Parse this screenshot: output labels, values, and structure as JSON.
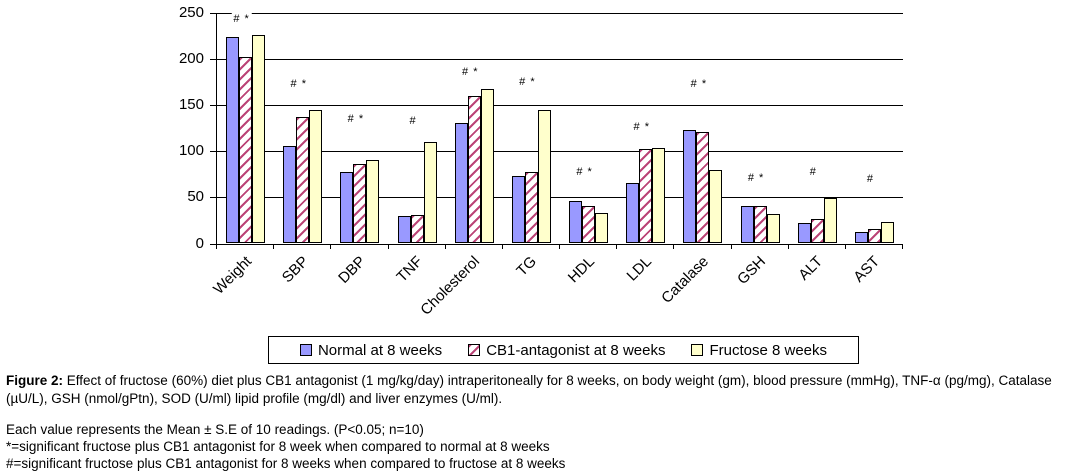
{
  "chart_data": {
    "type": "bar",
    "title": "",
    "categories": [
      "Weight",
      "SBP",
      "DBP",
      "TNF",
      "Cholesterol",
      "TG",
      "HDL",
      "LDL",
      "Catalase",
      "GSH",
      "ALT",
      "AST"
    ],
    "series": [
      {
        "name": "Normal  at 8 weeks",
        "color": "#9999FF",
        "pattern": "solid",
        "values": [
          224,
          106,
          77,
          30,
          130,
          73,
          46,
          66,
          123,
          41,
          22,
          12
        ]
      },
      {
        "name": "CB1-antagonist at 8 weeks",
        "color": "#BB4477",
        "pattern": "diagonal-hatch",
        "values": [
          202,
          137,
          86,
          31,
          160,
          77,
          41,
          102,
          121,
          41,
          27,
          16
        ]
      },
      {
        "name": "Fructose 8 weeks",
        "color": "#FFFFCC",
        "pattern": "solid",
        "values": [
          226,
          144,
          90,
          110,
          167,
          145,
          33,
          103,
          80,
          32,
          49,
          23
        ]
      }
    ],
    "ylim": [
      0,
      250
    ],
    "yticks": [
      0,
      50,
      100,
      150,
      200,
      250
    ],
    "grid": "horizontal",
    "legend_position": "bottom",
    "annotations": [
      {
        "category": "Weight",
        "text": "# *",
        "y": 242
      },
      {
        "category": "SBP",
        "text": "# *",
        "y": 172
      },
      {
        "category": "DBP",
        "text": "# *",
        "y": 134
      },
      {
        "category": "TNF",
        "text": "#",
        "y": 132
      },
      {
        "category": "Cholesterol",
        "text": "# *",
        "y": 185
      },
      {
        "category": "TG",
        "text": "# *",
        "y": 174
      },
      {
        "category": "HDL",
        "text": "# *",
        "y": 76
      },
      {
        "category": "LDL",
        "text": "# *",
        "y": 125
      },
      {
        "category": "Catalase",
        "text": "# *",
        "y": 172
      },
      {
        "category": "GSH",
        "text": "# *",
        "y": 70
      },
      {
        "category": "ALT",
        "text": "#",
        "y": 76
      },
      {
        "category": "AST",
        "text": "#",
        "y": 69
      }
    ]
  },
  "caption": {
    "label": "Figure 2:",
    "text": " Effect of fructose (60%) diet plus CB1 antagonist (1 mg/kg/day) intraperitoneally for 8 weeks, on body weight (gm), blood pressure (mmHg), TNF-α (pg/mg), Catalase (µU/L), GSH (nmol/gPtn), SOD (U/ml) lipid profile (mg/dl) and liver enzymes (U/ml)."
  },
  "notes": [
    "Each value represents the Mean ± S.E of 10 readings. (P<0.05; n=10)",
    "*=significant fructose plus CB1 antagonist for 8 week when compared to normal at 8 weeks",
    "#=significant fructose plus CB1 antagonist for 8 weeks when compared to fructose at 8 weeks"
  ],
  "colors": {
    "bar_normal": "#9999FF",
    "bar_cb1_stripe": "#BB4477",
    "bar_fructose": "#FFFFCC",
    "axis": "#000000"
  }
}
